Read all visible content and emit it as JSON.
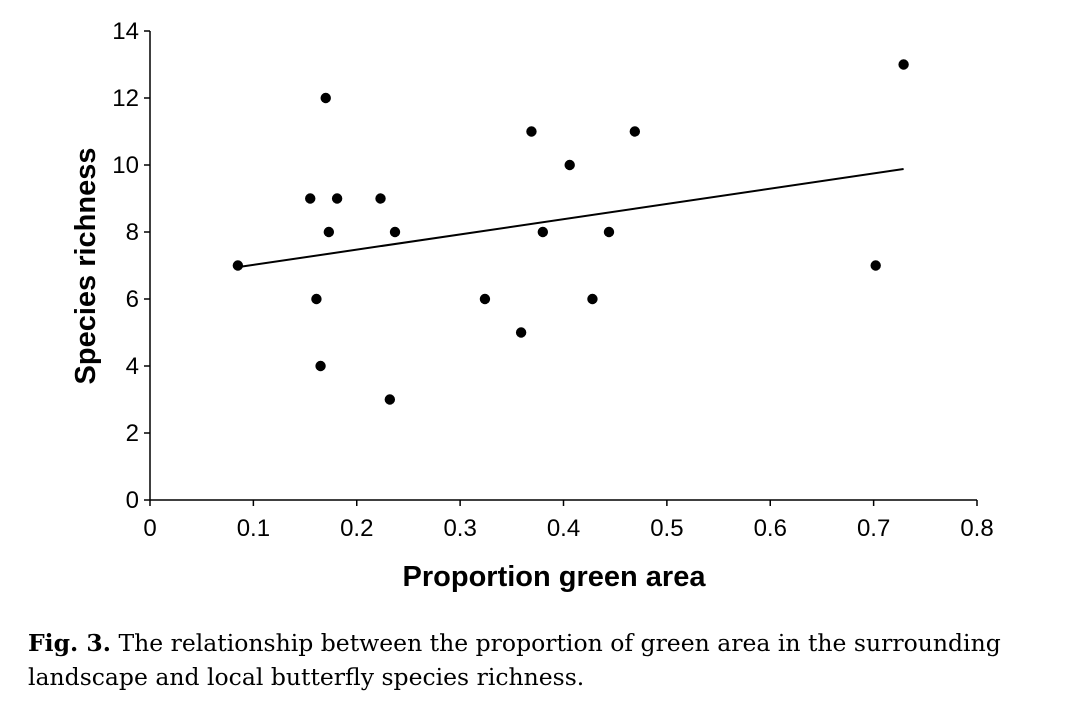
{
  "chart_data": {
    "type": "scatter",
    "xlabel": "Proportion green area",
    "ylabel": "Species richness",
    "xlim": [
      0,
      0.8
    ],
    "ylim": [
      0,
      14
    ],
    "xticks": [
      "0",
      "0.1",
      "0.2",
      "0.3",
      "0.4",
      "0.5",
      "0.6",
      "0.7",
      "0.8"
    ],
    "yticks": [
      "0",
      "2",
      "4",
      "6",
      "8",
      "10",
      "12",
      "14"
    ],
    "points": [
      {
        "x": 0.085,
        "y": 7
      },
      {
        "x": 0.155,
        "y": 9
      },
      {
        "x": 0.161,
        "y": 6
      },
      {
        "x": 0.165,
        "y": 4
      },
      {
        "x": 0.17,
        "y": 12
      },
      {
        "x": 0.173,
        "y": 8
      },
      {
        "x": 0.181,
        "y": 9
      },
      {
        "x": 0.223,
        "y": 9
      },
      {
        "x": 0.232,
        "y": 3
      },
      {
        "x": 0.237,
        "y": 8
      },
      {
        "x": 0.324,
        "y": 6
      },
      {
        "x": 0.359,
        "y": 5
      },
      {
        "x": 0.369,
        "y": 11
      },
      {
        "x": 0.38,
        "y": 8
      },
      {
        "x": 0.406,
        "y": 10
      },
      {
        "x": 0.428,
        "y": 6
      },
      {
        "x": 0.444,
        "y": 8
      },
      {
        "x": 0.469,
        "y": 11
      },
      {
        "x": 0.702,
        "y": 7
      },
      {
        "x": 0.729,
        "y": 13
      }
    ],
    "trendline": {
      "x": [
        0.085,
        0.729
      ],
      "y": [
        6.95,
        9.88
      ]
    },
    "grid": false,
    "legend": false
  },
  "caption": {
    "label": "Fig. 3.",
    "text": "The relationship between the proportion of green area in the surrounding landscape and local butterfly species richness."
  }
}
